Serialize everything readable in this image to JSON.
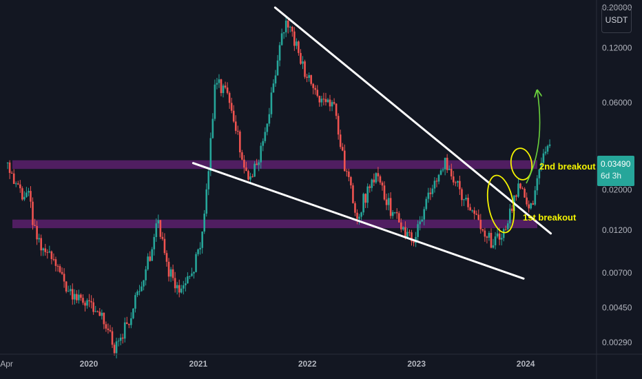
{
  "currency": "USDT",
  "colors": {
    "background": "#131722",
    "up": "#26a69a",
    "down": "#ef5350",
    "zone": "#9c27b0",
    "trendline": "#ffffff",
    "annotation": "#f5f500",
    "arrow": "#6bd33d",
    "axis_text": "#b2b5be"
  },
  "last_price": {
    "value": "0.03490",
    "countdown": "6d 3h"
  },
  "annotations": {
    "breakout_2": "2nd breakout",
    "breakout_1": "1st breakout"
  },
  "chart_data": {
    "type": "candlestick",
    "y_scale": "log",
    "ylim": [
      0.0025,
      0.22
    ],
    "y_ticks": [
      "0.20000",
      "0.12000",
      "0.06000",
      "0.02000",
      "0.01200",
      "0.00700",
      "0.00450",
      "0.00290"
    ],
    "y_tick_values": [
      0.2,
      0.12,
      0.06,
      0.02,
      0.012,
      0.007,
      0.0045,
      0.0029
    ],
    "x_ticks": [
      "Apr",
      "2020",
      "2021",
      "2022",
      "2023",
      "2024"
    ],
    "x_tick_dates": [
      "2019-04-01",
      "2020-01-01",
      "2021-01-01",
      "2022-01-01",
      "2023-01-01",
      "2024-01-01"
    ],
    "xlim": [
      "2019-03-10",
      "2024-08-25"
    ],
    "last_price": 0.0349,
    "resistance_zone": [
      0.026,
      0.029
    ],
    "support_zone": [
      0.0123,
      0.0137
    ],
    "trendlines": [
      {
        "from": [
          "2021-09-15",
          0.2
        ],
        "to": [
          "2024-03-25",
          0.0115
        ]
      },
      {
        "from": [
          "2020-12-15",
          0.028
        ],
        "to": [
          "2023-12-25",
          0.0065
        ]
      }
    ],
    "anchors": [
      [
        "2019-04-01",
        0.028
      ],
      [
        "2019-05-10",
        0.02
      ],
      [
        "2019-06-20",
        0.018
      ],
      [
        "2019-07-10",
        0.011
      ],
      [
        "2019-09-01",
        0.0082
      ],
      [
        "2019-11-01",
        0.0055
      ],
      [
        "2020-01-10",
        0.0048
      ],
      [
        "2020-03-10",
        0.0035
      ],
      [
        "2020-03-25",
        0.0026
      ],
      [
        "2020-05-15",
        0.0038
      ],
      [
        "2020-06-20",
        0.0055
      ],
      [
        "2020-08-01",
        0.0092
      ],
      [
        "2020-08-20",
        0.014
      ],
      [
        "2020-09-20",
        0.0076
      ],
      [
        "2020-10-30",
        0.0055
      ],
      [
        "2020-12-01",
        0.0062
      ],
      [
        "2021-01-10",
        0.0095
      ],
      [
        "2021-02-05",
        0.021
      ],
      [
        "2021-03-01",
        0.078
      ],
      [
        "2021-04-10",
        0.068
      ],
      [
        "2021-05-10",
        0.043
      ],
      [
        "2021-06-20",
        0.022
      ],
      [
        "2021-07-25",
        0.028
      ],
      [
        "2021-09-05",
        0.063
      ],
      [
        "2021-10-20",
        0.16
      ],
      [
        "2021-11-25",
        0.13
      ],
      [
        "2022-01-01",
        0.085
      ],
      [
        "2022-02-20",
        0.061
      ],
      [
        "2022-04-01",
        0.058
      ],
      [
        "2022-05-10",
        0.026
      ],
      [
        "2022-06-20",
        0.0145
      ],
      [
        "2022-07-15",
        0.018
      ],
      [
        "2022-08-20",
        0.024
      ],
      [
        "2022-10-10",
        0.0155
      ],
      [
        "2022-12-20",
        0.0105
      ],
      [
        "2023-02-20",
        0.02
      ],
      [
        "2023-04-10",
        0.029
      ],
      [
        "2023-06-01",
        0.019
      ],
      [
        "2023-07-20",
        0.014
      ],
      [
        "2023-09-15",
        0.01
      ],
      [
        "2023-11-01",
        0.0125
      ],
      [
        "2023-12-15",
        0.021
      ],
      [
        "2024-01-25",
        0.016
      ],
      [
        "2024-02-20",
        0.025
      ],
      [
        "2024-03-20",
        0.0349
      ]
    ]
  }
}
